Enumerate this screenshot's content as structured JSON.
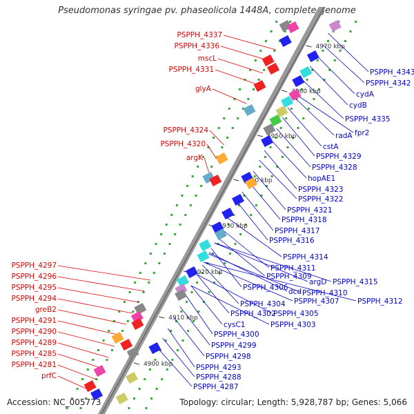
{
  "title": "Pseudomonas syringae pv. phaseolicola 1448A, complete genome",
  "footer": {
    "accession": "Accession: NC_005773",
    "topology": "Topology: circular; Length: 5,928,787 bp; Genes: 5,066"
  },
  "colors": {
    "left_labels": "#dd0000",
    "right_labels": "#0000cc",
    "forward_genes": "#ee0000",
    "reverse_genes": "#0000ee",
    "backbone": "#999999",
    "ruler_text": "#333333",
    "dots": "#33aa33"
  },
  "ruler": [
    "4970 kbp",
    "4960 kbp",
    "4950 kbp",
    "4940 kbp",
    "4930 kbp",
    "4920 kbp",
    "4910 kbp",
    "4900 kbp"
  ],
  "left_labels": [
    "PSPPH_4337",
    "PSPPH_4336",
    "mscL",
    "PSPPH_4331",
    "glyA",
    "PSPPH_4324",
    "PSPPH_4320",
    "argK",
    "PSPPH_4297",
    "PSPPH_4296",
    "PSPPH_4295",
    "PSPPH_4294",
    "greB2",
    "PSPPH_4291",
    "PSPPH_4290",
    "PSPPH_4289",
    "PSPPH_4285",
    "PSPPH_4281",
    "prfC"
  ],
  "right_labels": [
    "PSPPH_4343",
    "PSPPH_4342",
    "cydA",
    "cydB",
    "PSPPH_4335",
    "fpr2",
    "radA",
    "cstA",
    "PSPPH_4329",
    "PSPPH_4328",
    "hopAE1",
    "PSPPH_4323",
    "PSPPH_4322",
    "PSPPH_4321",
    "PSPPH_4318",
    "PSPPH_4317",
    "PSPPH_4316",
    "PSPPH_4314",
    "PSPPH_4311",
    "PSPPH_4309",
    "argD",
    "PSPPH_4315",
    "PSPPH_4306",
    "dcd",
    "PSPPH_4310",
    "PSPPH_4307",
    "PSPPH_4312",
    "PSPPH_4304",
    "PSPPH_4302",
    "PSPPH_4305",
    "PSPPH_4303",
    "cysC1",
    "PSPPH_4300",
    "PSPPH_4299",
    "PSPPH_4298",
    "PSPPH_4293",
    "PSPPH_4288",
    "PSPPH_4287"
  ]
}
